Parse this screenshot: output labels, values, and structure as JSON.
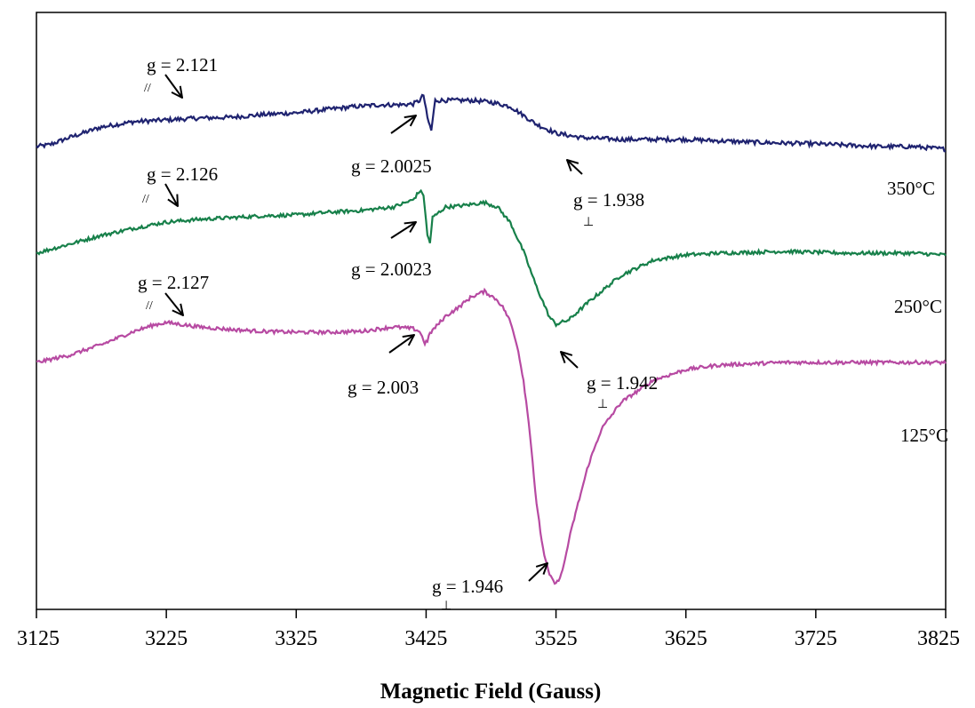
{
  "chart_data": {
    "type": "line",
    "xlabel": "Magnetic Field (Gauss)",
    "ylabel": "",
    "xlim": [
      3125,
      3825
    ],
    "x_ticks": [
      3125,
      3225,
      3325,
      3425,
      3525,
      3625,
      3725,
      3825
    ],
    "grid": false,
    "y_tick_labels": false,
    "series": [
      {
        "name": "350°C",
        "color": "#1f2370",
        "noise": 3,
        "x": [
          3125,
          3135,
          3150,
          3175,
          3200,
          3225,
          3250,
          3275,
          3300,
          3325,
          3350,
          3370,
          3390,
          3405,
          3415,
          3420,
          3423,
          3426,
          3429,
          3432,
          3440,
          3460,
          3475,
          3490,
          3500,
          3510,
          3525,
          3545,
          3575,
          3625,
          3675,
          3725,
          3775,
          3800,
          3825
        ],
        "y": [
          0,
          2,
          10,
          22,
          28,
          30,
          32,
          33,
          36,
          38,
          42,
          45,
          47,
          47,
          48,
          52,
          58,
          32,
          18,
          52,
          52,
          52,
          50,
          45,
          35,
          25,
          15,
          10,
          8,
          8,
          5,
          3,
          0,
          0,
          -3
        ]
      },
      {
        "name": "250°C",
        "color": "#17804a",
        "noise": 2.5,
        "x": [
          3125,
          3150,
          3175,
          3200,
          3225,
          3250,
          3275,
          3300,
          3325,
          3350,
          3375,
          3400,
          3415,
          3420,
          3423,
          3426,
          3428,
          3430,
          3440,
          3450,
          3460,
          3470,
          3480,
          3490,
          3500,
          3510,
          3520,
          3525,
          3535,
          3550,
          3575,
          3600,
          3625,
          3650,
          3700,
          3750,
          3800,
          3825
        ],
        "y": [
          0,
          10,
          20,
          28,
          35,
          38,
          40,
          42,
          43,
          46,
          48,
          52,
          60,
          70,
          66,
          20,
          12,
          40,
          52,
          53,
          55,
          57,
          52,
          34,
          2,
          -38,
          -72,
          -80,
          -75,
          -55,
          -25,
          -8,
          -2,
          0,
          2,
          0,
          0,
          -2
        ]
      },
      {
        "name": "125°C",
        "color": "#b74aa2",
        "noise": 2.5,
        "x": [
          3125,
          3150,
          3175,
          3200,
          3215,
          3225,
          3250,
          3275,
          3300,
          3325,
          3350,
          3375,
          3400,
          3415,
          3420,
          3424,
          3426,
          3428,
          3440,
          3450,
          3460,
          3470,
          3480,
          3485,
          3490,
          3495,
          3500,
          3505,
          3510,
          3515,
          3520,
          3525,
          3530,
          3535,
          3540,
          3550,
          3560,
          3575,
          3600,
          3625,
          3650,
          3700,
          3750,
          3800,
          3825
        ],
        "y": [
          0,
          8,
          20,
          35,
          42,
          45,
          40,
          37,
          35,
          34,
          34,
          35,
          40,
          38,
          35,
          22,
          24,
          33,
          52,
          62,
          74,
          80,
          70,
          60,
          45,
          20,
          -20,
          -80,
          -160,
          -210,
          -240,
          -250,
          -235,
          -200,
          -170,
          -115,
          -75,
          -45,
          -20,
          -8,
          -3,
          0,
          0,
          0,
          0
        ]
      }
    ],
    "annotations": [
      {
        "id": "g-parallel-350",
        "label": "g = 2.121",
        "subscript": "//",
        "x": 3233,
        "series": "350°C"
      },
      {
        "id": "g-free-350",
        "label": "g = 2.0025",
        "x": 3420,
        "series": "350°C"
      },
      {
        "id": "g-perp-350",
        "label": "g = 1.938",
        "subscript": "⊥",
        "x": 3532,
        "series": "350°C"
      },
      {
        "id": "g-parallel-250",
        "label": "g = 2.126",
        "subscript": "//",
        "x": 3228,
        "series": "250°C"
      },
      {
        "id": "g-free-250",
        "label": "g = 2.0023",
        "x": 3420,
        "series": "250°C"
      },
      {
        "id": "g-perp-250",
        "label": "g = 1.942",
        "subscript": "⊥",
        "x": 3527,
        "series": "250°C"
      },
      {
        "id": "g-parallel-125",
        "label": "g = 2.127",
        "subscript": "//",
        "x": 3232,
        "series": "125°C"
      },
      {
        "id": "g-free-125",
        "label": "g = 2.003",
        "x": 3420,
        "series": "125°C"
      },
      {
        "id": "g-perp-125",
        "label": "g = 1.946",
        "subscript": "⊥",
        "x": 3523,
        "series": "125°C"
      }
    ]
  }
}
